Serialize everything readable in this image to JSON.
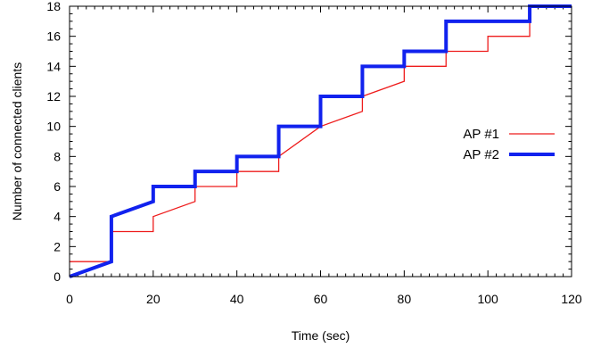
{
  "chart_data": {
    "type": "line",
    "xlabel": "Time (sec)",
    "ylabel": "Number of connected clients",
    "xlim": [
      0,
      120
    ],
    "ylim": [
      0,
      18
    ],
    "xticks": [
      0,
      20,
      40,
      60,
      80,
      100,
      120
    ],
    "yticks": [
      0,
      2,
      4,
      6,
      8,
      10,
      12,
      14,
      16,
      18
    ],
    "grid": false,
    "legend_position": "right",
    "series": [
      {
        "name": "AP #1",
        "color": "#ee1c1c",
        "points": [
          [
            0,
            1
          ],
          [
            10,
            1
          ],
          [
            10,
            3
          ],
          [
            20,
            3
          ],
          [
            20,
            4
          ],
          [
            30,
            5
          ],
          [
            30,
            6
          ],
          [
            40,
            6
          ],
          [
            40,
            7
          ],
          [
            50,
            7
          ],
          [
            50,
            8
          ],
          [
            60,
            10
          ],
          [
            70,
            11
          ],
          [
            70,
            12
          ],
          [
            80,
            13
          ],
          [
            80,
            14
          ],
          [
            90,
            14
          ],
          [
            90,
            15
          ],
          [
            100,
            15
          ],
          [
            100,
            16
          ],
          [
            110,
            16
          ],
          [
            110,
            18
          ],
          [
            120,
            18
          ]
        ]
      },
      {
        "name": "AP #2",
        "color": "#1122ee",
        "points": [
          [
            0,
            0
          ],
          [
            10,
            1
          ],
          [
            10,
            4
          ],
          [
            20,
            5
          ],
          [
            20,
            6
          ],
          [
            30,
            6
          ],
          [
            30,
            7
          ],
          [
            40,
            7
          ],
          [
            40,
            8
          ],
          [
            50,
            8
          ],
          [
            50,
            10
          ],
          [
            60,
            10
          ],
          [
            60,
            12
          ],
          [
            70,
            12
          ],
          [
            70,
            14
          ],
          [
            80,
            14
          ],
          [
            80,
            15
          ],
          [
            90,
            15
          ],
          [
            90,
            17
          ],
          [
            110,
            17
          ],
          [
            110,
            18
          ],
          [
            120,
            18
          ]
        ]
      }
    ]
  }
}
